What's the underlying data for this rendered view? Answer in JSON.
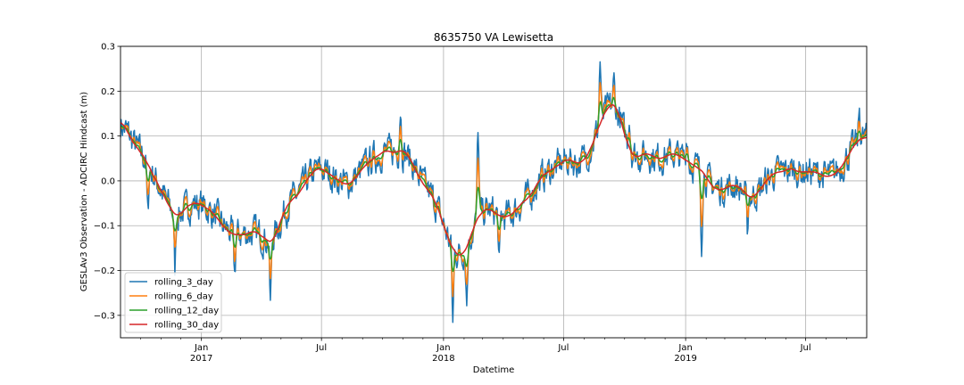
{
  "chart_data": {
    "type": "line",
    "title": "8635750 VA Lewisetta",
    "xlabel": "Datetime",
    "ylabel": "GESLAv3 Observation - ADCIRC Hindcast (m)",
    "xlim": [
      "2016-09-01",
      "2019-10-01"
    ],
    "ylim": [
      -0.35,
      0.3
    ],
    "grid": true,
    "legend_position": "lower-left",
    "yticks": [
      -0.3,
      -0.2,
      -0.1,
      0.0,
      0.1,
      0.2,
      0.3
    ],
    "ytick_labels": [
      "−0.3",
      "−0.2",
      "−0.1",
      "0.0",
      "0.1",
      "0.2",
      "0.3"
    ],
    "xticks_major": [
      {
        "date": "2017-01-01",
        "label": "Jan",
        "year_label": "2017"
      },
      {
        "date": "2017-07-01",
        "label": "Jul",
        "year_label": ""
      },
      {
        "date": "2018-01-01",
        "label": "Jan",
        "year_label": "2018"
      },
      {
        "date": "2018-07-01",
        "label": "Jul",
        "year_label": ""
      },
      {
        "date": "2019-01-01",
        "label": "Jan",
        "year_label": "2019"
      },
      {
        "date": "2019-07-01",
        "label": "Jul",
        "year_label": ""
      }
    ],
    "xticks_minor": [
      "2016-10-01",
      "2016-11-01",
      "2016-12-01",
      "2017-02-01",
      "2017-03-01",
      "2017-04-01",
      "2017-05-01",
      "2017-06-01",
      "2017-08-01",
      "2017-09-01",
      "2017-10-01",
      "2017-11-01",
      "2017-12-01",
      "2018-02-01",
      "2018-03-01",
      "2018-04-01",
      "2018-05-01",
      "2018-06-01",
      "2018-08-01",
      "2018-09-01",
      "2018-10-01",
      "2018-11-01",
      "2018-12-01",
      "2019-02-01",
      "2019-03-01",
      "2019-04-01",
      "2019-05-01",
      "2019-06-01",
      "2019-08-01",
      "2019-09-01"
    ],
    "anchors": [
      [
        "2016-09-01",
        0.14
      ],
      [
        "2016-09-08",
        0.12
      ],
      [
        "2016-09-18",
        0.09
      ],
      [
        "2016-09-28",
        0.07
      ],
      [
        "2016-10-08",
        0.05
      ],
      [
        "2016-10-18",
        0.02
      ],
      [
        "2016-10-28",
        -0.01
      ],
      [
        "2016-11-08",
        -0.04
      ],
      [
        "2016-11-18",
        -0.07
      ],
      [
        "2016-11-28",
        -0.08
      ],
      [
        "2016-12-08",
        -0.06
      ],
      [
        "2016-12-18",
        -0.05
      ],
      [
        "2016-12-28",
        -0.05
      ],
      [
        "2017-01-08",
        -0.06
      ],
      [
        "2017-01-18",
        -0.07
      ],
      [
        "2017-01-28",
        -0.09
      ],
      [
        "2017-02-08",
        -0.11
      ],
      [
        "2017-02-18",
        -0.12
      ],
      [
        "2017-03-01",
        -0.12
      ],
      [
        "2017-03-10",
        -0.12
      ],
      [
        "2017-03-20",
        -0.11
      ],
      [
        "2017-03-30",
        -0.12
      ],
      [
        "2017-04-08",
        -0.13
      ],
      [
        "2017-04-18",
        -0.14
      ],
      [
        "2017-04-28",
        -0.1
      ],
      [
        "2017-05-08",
        -0.06
      ],
      [
        "2017-05-18",
        -0.04
      ],
      [
        "2017-05-28",
        -0.03
      ],
      [
        "2017-06-08",
        0.0
      ],
      [
        "2017-06-18",
        0.02
      ],
      [
        "2017-06-28",
        0.03
      ],
      [
        "2017-07-08",
        0.02
      ],
      [
        "2017-07-18",
        0.01
      ],
      [
        "2017-07-28",
        0.0
      ],
      [
        "2017-08-08",
        -0.01
      ],
      [
        "2017-08-18",
        0.0
      ],
      [
        "2017-08-28",
        0.02
      ],
      [
        "2017-09-08",
        0.04
      ],
      [
        "2017-09-18",
        0.05
      ],
      [
        "2017-09-28",
        0.06
      ],
      [
        "2017-10-08",
        0.07
      ],
      [
        "2017-10-18",
        0.06
      ],
      [
        "2017-10-28",
        0.07
      ],
      [
        "2017-11-08",
        0.06
      ],
      [
        "2017-11-18",
        0.03
      ],
      [
        "2017-11-28",
        0.0
      ],
      [
        "2017-12-08",
        -0.02
      ],
      [
        "2017-12-18",
        -0.04
      ],
      [
        "2017-12-28",
        -0.08
      ],
      [
        "2018-01-08",
        -0.13
      ],
      [
        "2018-01-18",
        -0.16
      ],
      [
        "2018-01-28",
        -0.17
      ],
      [
        "2018-02-08",
        -0.14
      ],
      [
        "2018-02-18",
        -0.09
      ],
      [
        "2018-02-28",
        -0.07
      ],
      [
        "2018-03-08",
        -0.06
      ],
      [
        "2018-03-18",
        -0.07
      ],
      [
        "2018-03-28",
        -0.08
      ],
      [
        "2018-04-08",
        -0.08
      ],
      [
        "2018-04-18",
        -0.07
      ],
      [
        "2018-04-28",
        -0.05
      ],
      [
        "2018-05-08",
        -0.04
      ],
      [
        "2018-05-18",
        -0.02
      ],
      [
        "2018-05-28",
        0.01
      ],
      [
        "2018-06-08",
        0.02
      ],
      [
        "2018-06-18",
        0.03
      ],
      [
        "2018-06-28",
        0.04
      ],
      [
        "2018-07-08",
        0.05
      ],
      [
        "2018-07-18",
        0.04
      ],
      [
        "2018-07-28",
        0.04
      ],
      [
        "2018-08-08",
        0.06
      ],
      [
        "2018-08-18",
        0.1
      ],
      [
        "2018-08-28",
        0.14
      ],
      [
        "2018-09-08",
        0.17
      ],
      [
        "2018-09-18",
        0.17
      ],
      [
        "2018-09-28",
        0.12
      ],
      [
        "2018-10-08",
        0.07
      ],
      [
        "2018-10-18",
        0.05
      ],
      [
        "2018-10-28",
        0.06
      ],
      [
        "2018-11-08",
        0.06
      ],
      [
        "2018-11-18",
        0.05
      ],
      [
        "2018-11-28",
        0.05
      ],
      [
        "2018-12-08",
        0.06
      ],
      [
        "2018-12-18",
        0.06
      ],
      [
        "2018-12-28",
        0.05
      ],
      [
        "2019-01-08",
        0.04
      ],
      [
        "2019-01-18",
        0.03
      ],
      [
        "2019-01-28",
        0.02
      ],
      [
        "2019-02-08",
        -0.01
      ],
      [
        "2019-02-18",
        -0.02
      ],
      [
        "2019-02-28",
        -0.02
      ],
      [
        "2019-03-08",
        -0.01
      ],
      [
        "2019-03-18",
        -0.01
      ],
      [
        "2019-03-28",
        -0.02
      ],
      [
        "2019-04-08",
        -0.04
      ],
      [
        "2019-04-18",
        -0.03
      ],
      [
        "2019-04-28",
        -0.01
      ],
      [
        "2019-05-08",
        0.01
      ],
      [
        "2019-05-18",
        0.02
      ],
      [
        "2019-05-28",
        0.02
      ],
      [
        "2019-06-08",
        0.03
      ],
      [
        "2019-06-18",
        0.02
      ],
      [
        "2019-06-28",
        0.02
      ],
      [
        "2019-07-08",
        0.02
      ],
      [
        "2019-07-18",
        0.02
      ],
      [
        "2019-07-28",
        0.01
      ],
      [
        "2019-08-08",
        0.01
      ],
      [
        "2019-08-18",
        0.02
      ],
      [
        "2019-08-28",
        0.04
      ],
      [
        "2019-09-08",
        0.07
      ],
      [
        "2019-09-18",
        0.09
      ],
      [
        "2019-09-28",
        0.1
      ],
      [
        "2019-10-01",
        0.09
      ]
    ],
    "extremes": [
      [
        "2016-10-12",
        -0.08
      ],
      [
        "2016-11-22",
        -0.2
      ],
      [
        "2017-02-20",
        -0.21
      ],
      [
        "2017-04-15",
        -0.28
      ],
      [
        "2017-10-28",
        0.17
      ],
      [
        "2018-01-15",
        -0.32
      ],
      [
        "2018-02-05",
        -0.27
      ],
      [
        "2018-02-22",
        0.12
      ],
      [
        "2018-03-26",
        -0.19
      ],
      [
        "2018-08-25",
        0.27
      ],
      [
        "2018-09-15",
        0.22
      ],
      [
        "2018-10-08",
        0.15
      ],
      [
        "2019-01-03",
        0.11
      ],
      [
        "2019-01-25",
        -0.13
      ],
      [
        "2019-04-04",
        -0.11
      ],
      [
        "2019-09-20",
        0.16
      ]
    ],
    "series": [
      {
        "name": "rolling_3_day",
        "window_days": 3,
        "color": "#1f77b4",
        "noise": 0.03
      },
      {
        "name": "rolling_6_day",
        "window_days": 6,
        "color": "#ff7f0e",
        "noise": 0.02
      },
      {
        "name": "rolling_12_day",
        "window_days": 12,
        "color": "#2ca02c",
        "noise": 0.01
      },
      {
        "name": "rolling_30_day",
        "window_days": 30,
        "color": "#d62728",
        "noise": 0.0
      }
    ]
  }
}
